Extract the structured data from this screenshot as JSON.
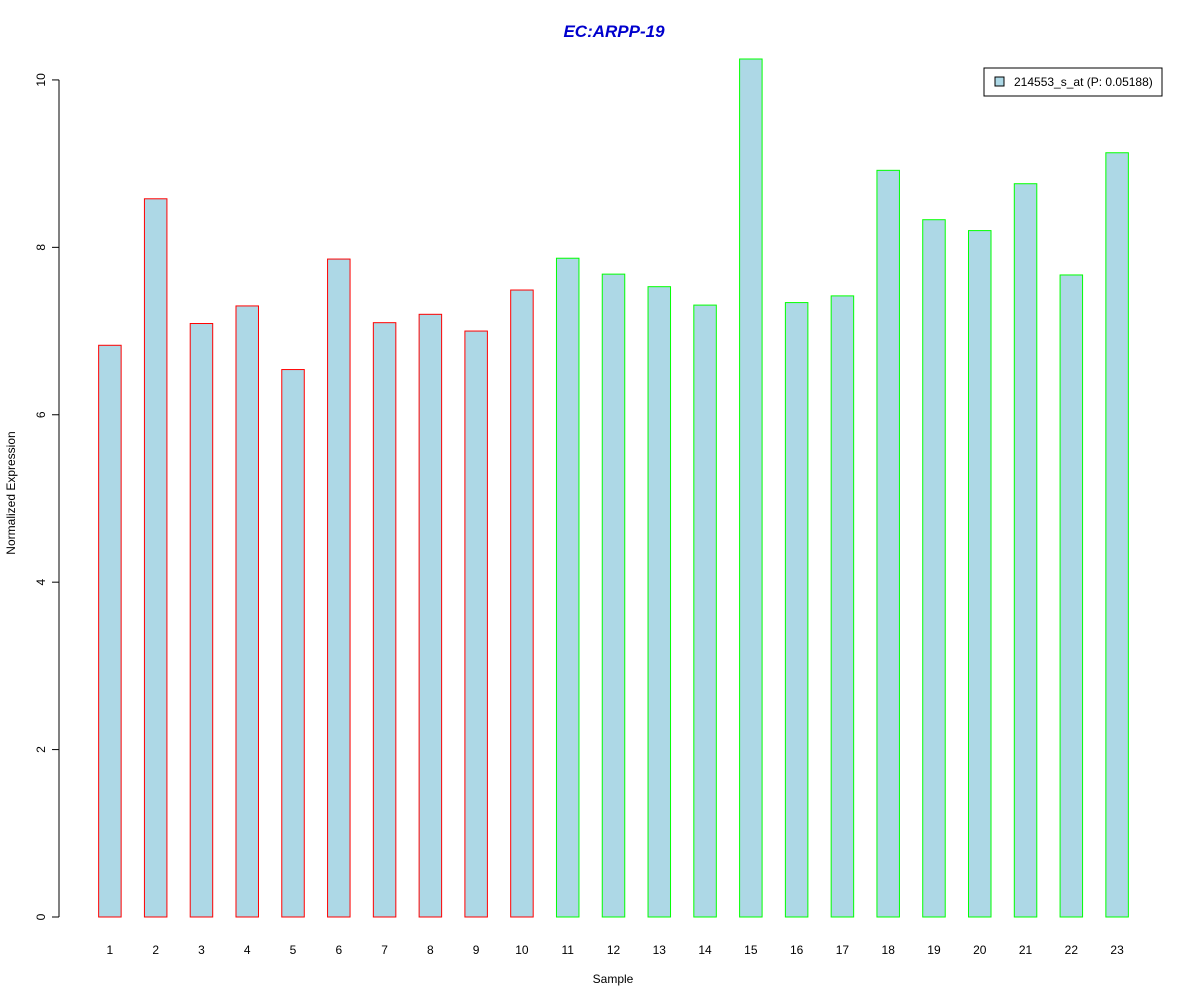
{
  "chart_data": {
    "type": "bar",
    "title": "EC:ARPP-19",
    "xlabel": "Sample",
    "ylabel": "Normalized Expression",
    "categories": [
      "1",
      "2",
      "3",
      "4",
      "5",
      "6",
      "7",
      "8",
      "9",
      "10",
      "11",
      "12",
      "13",
      "14",
      "15",
      "16",
      "17",
      "18",
      "19",
      "20",
      "21",
      "22",
      "23"
    ],
    "series": [
      {
        "name": "214553_s_at (P: 0.05188)",
        "values": [
          6.83,
          8.58,
          7.09,
          7.3,
          6.54,
          7.86,
          7.1,
          7.2,
          7.0,
          7.49,
          7.87,
          7.68,
          7.53,
          7.31,
          10.25,
          7.34,
          7.42,
          8.92,
          8.33,
          8.2,
          8.76,
          7.67,
          9.13
        ]
      }
    ],
    "groups": [
      {
        "samples": [
          1,
          10
        ],
        "border_color": "#ff0000"
      },
      {
        "samples": [
          11,
          23
        ],
        "border_color": "#00ff00"
      }
    ],
    "ylim": [
      0,
      10.25
    ],
    "yticks": [
      0,
      2,
      4,
      6,
      8,
      10
    ],
    "grid": false,
    "legend_position": "top-right",
    "colors": {
      "bar_fill": "#add8e6",
      "title": "#0000cd",
      "axis": "#000000"
    }
  }
}
